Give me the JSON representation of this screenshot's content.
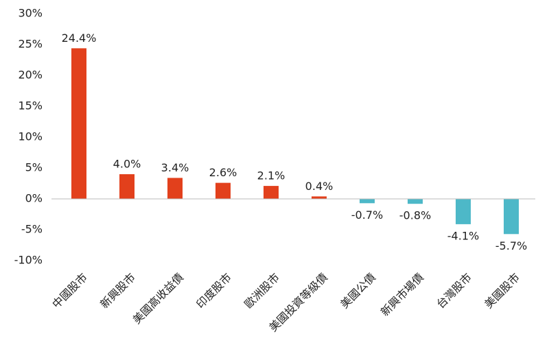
{
  "chart_data": {
    "type": "bar",
    "categories": [
      "中國股市",
      "新興股市",
      "美國高收益債",
      "印度股市",
      "歐洲股市",
      "美國投資等級債",
      "美國公債",
      "新興市場債",
      "台灣股市",
      "美國股市"
    ],
    "values": [
      24.4,
      4.0,
      3.4,
      2.6,
      2.1,
      0.4,
      -0.7,
      -0.8,
      -4.1,
      -5.7
    ],
    "value_labels": [
      "24.4%",
      "4.0%",
      "3.4%",
      "2.6%",
      "2.1%",
      "0.4%",
      "-0.7%",
      "-0.8%",
      "-4.1%",
      "-5.7%"
    ],
    "colors": [
      "#e2401c",
      "#e2401c",
      "#e2401c",
      "#e2401c",
      "#e2401c",
      "#e2401c",
      "#4db8c8",
      "#4db8c8",
      "#4db8c8",
      "#4db8c8"
    ],
    "ylim": [
      -10,
      30
    ],
    "yticks": [
      {
        "value": -10,
        "label": "-10%"
      },
      {
        "value": -5,
        "label": "-5%"
      },
      {
        "value": 0,
        "label": "0%"
      },
      {
        "value": 5,
        "label": "5%"
      },
      {
        "value": 10,
        "label": "10%"
      },
      {
        "value": 15,
        "label": "15%"
      },
      {
        "value": 20,
        "label": "20%"
      },
      {
        "value": 25,
        "label": "25%"
      },
      {
        "value": 30,
        "label": "30%"
      }
    ]
  }
}
